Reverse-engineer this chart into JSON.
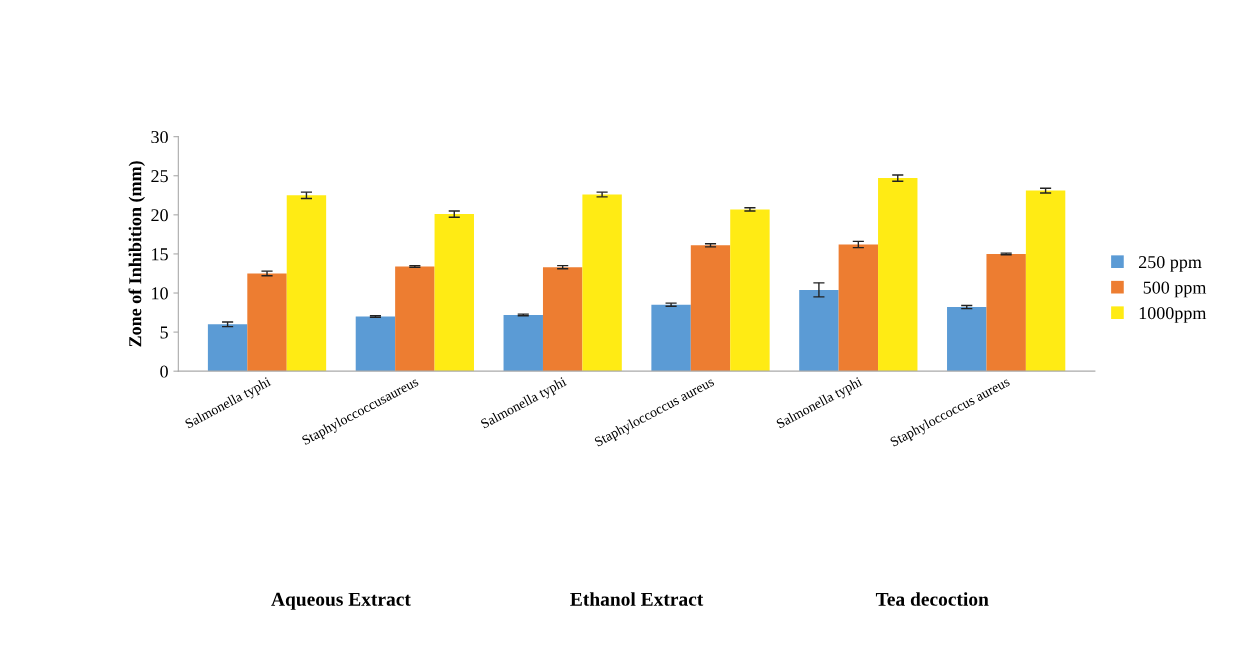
{
  "chart_data": {
    "type": "bar",
    "ylabel": "Zone of Inhibition (mm)",
    "categories": [
      "Salmonella typhi",
      "Staphyloccoccusaureus",
      "Salmonella typhi",
      "Staphyloccoccus aureus",
      "Salmonella typhi",
      "Staphyloccoccus aureus"
    ],
    "series": [
      {
        "name": "250 ppm",
        "color": "#5b9bd5",
        "values": [
          6.0,
          7.0,
          7.2,
          8.5,
          10.4,
          8.2
        ],
        "errors": [
          0.3,
          0.1,
          0.1,
          0.2,
          0.9,
          0.2
        ]
      },
      {
        "name": " 500 ppm",
        "color": "#ed7d31",
        "values": [
          12.5,
          13.4,
          13.3,
          16.1,
          16.2,
          15.0
        ],
        "errors": [
          0.3,
          0.1,
          0.2,
          0.2,
          0.4,
          0.1
        ]
      },
      {
        "name": "1000ppm",
        "color": "#ffeb14",
        "values": [
          22.5,
          20.1,
          22.6,
          20.7,
          24.7,
          23.1
        ],
        "errors": [
          0.4,
          0.4,
          0.3,
          0.2,
          0.4,
          0.3
        ]
      }
    ],
    "ylim": [
      0,
      30
    ],
    "yticks": [
      0,
      5,
      10,
      15,
      20,
      25,
      30
    ],
    "grid": false,
    "legend": "right",
    "annotations": [
      "Aqueous Extract",
      "Ethanol Extract",
      "Tea decoction"
    ]
  }
}
